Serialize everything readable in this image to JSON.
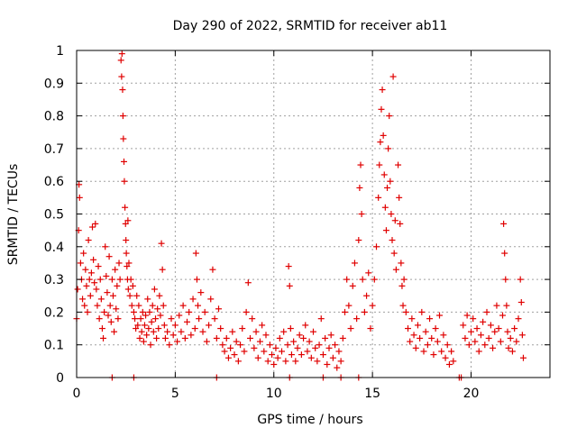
{
  "chart_data": {
    "type": "scatter",
    "title": "Day 290 of 2022, SRMTID for receiver ab11",
    "xlabel": "GPS time / hours",
    "ylabel": "SRMTID / TECUs",
    "xlim": [
      0,
      24
    ],
    "ylim": [
      0,
      1
    ],
    "x_ticks": [
      0,
      5,
      10,
      15,
      20
    ],
    "x_tick_labels": [
      "0",
      "5",
      "10",
      "15",
      "20"
    ],
    "y_ticks": [
      0,
      0.1,
      0.2,
      0.3,
      0.4,
      0.5,
      0.6,
      0.7,
      0.8,
      0.9,
      1
    ],
    "y_tick_labels": [
      "0",
      "0.1",
      "0.2",
      "0.3",
      "0.4",
      "0.5",
      "0.6",
      "0.7",
      "0.8",
      "0.9",
      "1"
    ],
    "grid": true,
    "marker": "+",
    "series": [
      {
        "name": "SRMTID",
        "color": "#e00000",
        "points": [
          [
            0.0,
            0.18
          ],
          [
            0.05,
            0.27
          ],
          [
            0.1,
            0.45
          ],
          [
            0.12,
            0.59
          ],
          [
            0.15,
            0.55
          ],
          [
            0.2,
            0.35
          ],
          [
            0.25,
            0.3
          ],
          [
            0.3,
            0.24
          ],
          [
            0.35,
            0.38
          ],
          [
            0.4,
            0.22
          ],
          [
            0.45,
            0.33
          ],
          [
            0.5,
            0.28
          ],
          [
            0.55,
            0.2
          ],
          [
            0.6,
            0.42
          ],
          [
            0.65,
            0.3
          ],
          [
            0.7,
            0.25
          ],
          [
            0.75,
            0.32
          ],
          [
            0.8,
            0.46
          ],
          [
            0.85,
            0.36
          ],
          [
            0.9,
            0.29
          ],
          [
            0.95,
            0.47
          ],
          [
            1.0,
            0.27
          ],
          [
            1.05,
            0.22
          ],
          [
            1.1,
            0.34
          ],
          [
            1.15,
            0.18
          ],
          [
            1.2,
            0.3
          ],
          [
            1.25,
            0.24
          ],
          [
            1.3,
            0.15
          ],
          [
            1.35,
            0.12
          ],
          [
            1.4,
            0.2
          ],
          [
            1.45,
            0.4
          ],
          [
            1.5,
            0.31
          ],
          [
            1.55,
            0.26
          ],
          [
            1.6,
            0.19
          ],
          [
            1.65,
            0.37
          ],
          [
            1.7,
            0.22
          ],
          [
            1.75,
            0.17
          ],
          [
            1.8,
            0.3
          ],
          [
            1.85,
            0.25
          ],
          [
            1.9,
            0.14
          ],
          [
            1.95,
            0.33
          ],
          [
            2.0,
            0.21
          ],
          [
            2.05,
            0.28
          ],
          [
            2.1,
            0.18
          ],
          [
            2.15,
            0.35
          ],
          [
            2.2,
            0.3
          ],
          [
            2.25,
            0.97
          ],
          [
            2.28,
            0.92
          ],
          [
            2.3,
            0.99
          ],
          [
            2.33,
            0.88
          ],
          [
            2.35,
            0.8
          ],
          [
            2.37,
            0.73
          ],
          [
            2.4,
            0.66
          ],
          [
            2.42,
            0.6
          ],
          [
            2.45,
            0.52
          ],
          [
            2.48,
            0.47
          ],
          [
            2.5,
            0.42
          ],
          [
            2.52,
            0.38
          ],
          [
            2.55,
            0.34
          ],
          [
            2.58,
            0.3
          ],
          [
            2.6,
            0.48
          ],
          [
            2.62,
            0.27
          ],
          [
            2.65,
            0.35
          ],
          [
            2.7,
            0.25
          ],
          [
            2.75,
            0.3
          ],
          [
            2.8,
            0.22
          ],
          [
            2.85,
            0.28
          ],
          [
            2.9,
            0.2
          ],
          [
            2.95,
            0.18
          ],
          [
            3.0,
            0.15
          ],
          [
            3.05,
            0.25
          ],
          [
            3.1,
            0.16
          ],
          [
            3.15,
            0.22
          ],
          [
            3.2,
            0.12
          ],
          [
            3.25,
            0.18
          ],
          [
            3.3,
            0.14
          ],
          [
            3.35,
            0.2
          ],
          [
            3.4,
            0.11
          ],
          [
            3.45,
            0.16
          ],
          [
            3.5,
            0.19
          ],
          [
            3.55,
            0.13
          ],
          [
            3.6,
            0.24
          ],
          [
            3.65,
            0.15
          ],
          [
            3.7,
            0.2
          ],
          [
            3.75,
            0.1
          ],
          [
            3.8,
            0.17
          ],
          [
            3.85,
            0.22
          ],
          [
            3.9,
            0.14
          ],
          [
            3.95,
            0.27
          ],
          [
            4.0,
            0.18
          ],
          [
            4.05,
            0.12
          ],
          [
            4.1,
            0.21
          ],
          [
            4.15,
            0.15
          ],
          [
            4.2,
            0.25
          ],
          [
            4.25,
            0.19
          ],
          [
            4.3,
            0.41
          ],
          [
            4.35,
            0.33
          ],
          [
            4.4,
            0.22
          ],
          [
            4.45,
            0.16
          ],
          [
            4.5,
            0.12
          ],
          [
            4.6,
            0.14
          ],
          [
            4.7,
            0.1
          ],
          [
            4.8,
            0.18
          ],
          [
            4.9,
            0.13
          ],
          [
            5.0,
            0.16
          ],
          [
            5.1,
            0.11
          ],
          [
            5.2,
            0.19
          ],
          [
            5.3,
            0.14
          ],
          [
            5.4,
            0.22
          ],
          [
            5.5,
            0.12
          ],
          [
            5.6,
            0.17
          ],
          [
            5.7,
            0.2
          ],
          [
            5.8,
            0.13
          ],
          [
            5.9,
            0.24
          ],
          [
            6.0,
            0.15
          ],
          [
            6.05,
            0.38
          ],
          [
            6.1,
            0.3
          ],
          [
            6.15,
            0.22
          ],
          [
            6.2,
            0.18
          ],
          [
            6.3,
            0.26
          ],
          [
            6.4,
            0.14
          ],
          [
            6.5,
            0.2
          ],
          [
            6.6,
            0.11
          ],
          [
            6.7,
            0.16
          ],
          [
            6.8,
            0.24
          ],
          [
            6.9,
            0.33
          ],
          [
            7.0,
            0.18
          ],
          [
            7.1,
            0.12
          ],
          [
            7.2,
            0.21
          ],
          [
            7.3,
            0.15
          ],
          [
            7.4,
            0.1
          ],
          [
            7.5,
            0.08
          ],
          [
            7.6,
            0.12
          ],
          [
            7.7,
            0.06
          ],
          [
            7.8,
            0.09
          ],
          [
            7.9,
            0.14
          ],
          [
            8.0,
            0.07
          ],
          [
            8.1,
            0.11
          ],
          [
            8.2,
            0.05
          ],
          [
            8.3,
            0.1
          ],
          [
            8.4,
            0.15
          ],
          [
            8.5,
            0.08
          ],
          [
            8.6,
            0.2
          ],
          [
            8.7,
            0.29
          ],
          [
            8.8,
            0.12
          ],
          [
            8.9,
            0.18
          ],
          [
            9.0,
            0.09
          ],
          [
            9.1,
            0.14
          ],
          [
            9.2,
            0.06
          ],
          [
            9.3,
            0.11
          ],
          [
            9.4,
            0.16
          ],
          [
            9.5,
            0.08
          ],
          [
            9.6,
            0.13
          ],
          [
            9.7,
            0.05
          ],
          [
            9.8,
            0.1
          ],
          [
            9.9,
            0.07
          ],
          [
            10.0,
            0.04
          ],
          [
            10.1,
            0.09
          ],
          [
            10.2,
            0.06
          ],
          [
            10.3,
            0.12
          ],
          [
            10.4,
            0.08
          ],
          [
            10.5,
            0.14
          ],
          [
            10.6,
            0.05
          ],
          [
            10.7,
            0.1
          ],
          [
            10.75,
            0.34
          ],
          [
            10.8,
            0.28
          ],
          [
            10.85,
            0.15
          ],
          [
            10.9,
            0.07
          ],
          [
            11.0,
            0.11
          ],
          [
            11.1,
            0.05
          ],
          [
            11.2,
            0.09
          ],
          [
            11.3,
            0.13
          ],
          [
            11.4,
            0.07
          ],
          [
            11.5,
            0.12
          ],
          [
            11.6,
            0.16
          ],
          [
            11.7,
            0.08
          ],
          [
            11.8,
            0.11
          ],
          [
            11.9,
            0.06
          ],
          [
            12.0,
            0.14
          ],
          [
            12.1,
            0.09
          ],
          [
            12.2,
            0.05
          ],
          [
            12.3,
            0.1
          ],
          [
            12.4,
            0.18
          ],
          [
            12.5,
            0.07
          ],
          [
            12.6,
            0.12
          ],
          [
            12.7,
            0.04
          ],
          [
            12.8,
            0.09
          ],
          [
            12.9,
            0.13
          ],
          [
            13.0,
            0.06
          ],
          [
            13.1,
            0.1
          ],
          [
            13.2,
            0.03
          ],
          [
            13.3,
            0.08
          ],
          [
            13.4,
            0.05
          ],
          [
            13.5,
            0.12
          ],
          [
            13.6,
            0.2
          ],
          [
            13.7,
            0.3
          ],
          [
            13.8,
            0.22
          ],
          [
            13.9,
            0.15
          ],
          [
            14.0,
            0.28
          ],
          [
            14.1,
            0.35
          ],
          [
            14.2,
            0.18
          ],
          [
            14.3,
            0.42
          ],
          [
            14.35,
            0.58
          ],
          [
            14.4,
            0.65
          ],
          [
            14.45,
            0.5
          ],
          [
            14.5,
            0.3
          ],
          [
            14.6,
            0.2
          ],
          [
            14.7,
            0.25
          ],
          [
            14.8,
            0.32
          ],
          [
            14.9,
            0.15
          ],
          [
            15.0,
            0.22
          ],
          [
            15.1,
            0.3
          ],
          [
            15.2,
            0.4
          ],
          [
            15.3,
            0.55
          ],
          [
            15.35,
            0.65
          ],
          [
            15.4,
            0.72
          ],
          [
            15.45,
            0.82
          ],
          [
            15.5,
            0.88
          ],
          [
            15.55,
            0.74
          ],
          [
            15.6,
            0.62
          ],
          [
            15.65,
            0.52
          ],
          [
            15.7,
            0.45
          ],
          [
            15.75,
            0.58
          ],
          [
            15.8,
            0.7
          ],
          [
            15.85,
            0.8
          ],
          [
            15.9,
            0.6
          ],
          [
            15.95,
            0.5
          ],
          [
            16.0,
            0.42
          ],
          [
            16.05,
            0.92
          ],
          [
            16.1,
            0.38
          ],
          [
            16.15,
            0.48
          ],
          [
            16.2,
            0.33
          ],
          [
            16.3,
            0.65
          ],
          [
            16.35,
            0.55
          ],
          [
            16.4,
            0.47
          ],
          [
            16.45,
            0.35
          ],
          [
            16.5,
            0.28
          ],
          [
            16.55,
            0.22
          ],
          [
            16.6,
            0.3
          ],
          [
            16.7,
            0.2
          ],
          [
            16.8,
            0.15
          ],
          [
            16.9,
            0.11
          ],
          [
            17.0,
            0.18
          ],
          [
            17.1,
            0.13
          ],
          [
            17.2,
            0.09
          ],
          [
            17.3,
            0.16
          ],
          [
            17.4,
            0.12
          ],
          [
            17.5,
            0.2
          ],
          [
            17.6,
            0.08
          ],
          [
            17.7,
            0.14
          ],
          [
            17.8,
            0.1
          ],
          [
            17.9,
            0.18
          ],
          [
            18.0,
            0.12
          ],
          [
            18.1,
            0.07
          ],
          [
            18.2,
            0.15
          ],
          [
            18.3,
            0.11
          ],
          [
            18.4,
            0.19
          ],
          [
            18.5,
            0.08
          ],
          [
            18.6,
            0.13
          ],
          [
            18.7,
            0.06
          ],
          [
            18.8,
            0.1
          ],
          [
            18.9,
            0.04
          ],
          [
            19.0,
            0.08
          ],
          [
            19.1,
            0.05
          ],
          [
            19.6,
            0.16
          ],
          [
            19.7,
            0.12
          ],
          [
            19.8,
            0.19
          ],
          [
            19.9,
            0.1
          ],
          [
            20.0,
            0.14
          ],
          [
            20.1,
            0.18
          ],
          [
            20.2,
            0.11
          ],
          [
            20.3,
            0.15
          ],
          [
            20.4,
            0.08
          ],
          [
            20.5,
            0.13
          ],
          [
            20.6,
            0.17
          ],
          [
            20.7,
            0.1
          ],
          [
            20.8,
            0.2
          ],
          [
            20.9,
            0.12
          ],
          [
            21.0,
            0.16
          ],
          [
            21.1,
            0.09
          ],
          [
            21.2,
            0.14
          ],
          [
            21.3,
            0.22
          ],
          [
            21.4,
            0.15
          ],
          [
            21.5,
            0.11
          ],
          [
            21.6,
            0.19
          ],
          [
            21.65,
            0.47
          ],
          [
            21.7,
            0.38
          ],
          [
            21.75,
            0.3
          ],
          [
            21.8,
            0.22
          ],
          [
            21.85,
            0.14
          ],
          [
            21.9,
            0.09
          ],
          [
            22.0,
            0.12
          ],
          [
            22.1,
            0.08
          ],
          [
            22.2,
            0.15
          ],
          [
            22.3,
            0.11
          ],
          [
            22.4,
            0.18
          ],
          [
            22.5,
            0.3
          ],
          [
            22.55,
            0.23
          ],
          [
            22.6,
            0.13
          ],
          [
            22.65,
            0.06
          ]
        ],
        "zero_markers": [
          1.8,
          2.9,
          7.1,
          10.8,
          12.5,
          13.4,
          14.3,
          19.4,
          19.5
        ]
      }
    ]
  }
}
